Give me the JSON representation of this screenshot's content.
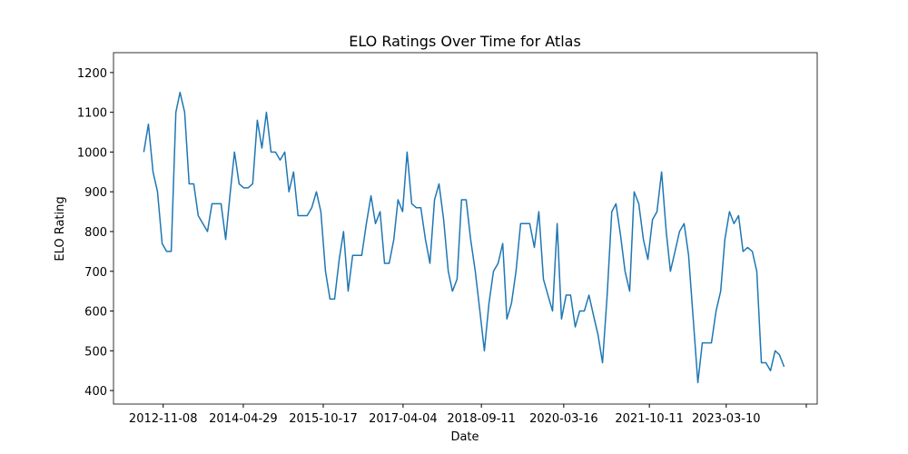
{
  "chart_data": {
    "type": "line",
    "title": "ELO Ratings Over Time for Atlas",
    "x_label": "Date",
    "y_label": "ELO Rating",
    "color": "#1f77b4",
    "x": [
      "2012-07-01",
      "2012-08-01",
      "2012-09-01",
      "2012-10-01",
      "2012-11-01",
      "2012-12-01",
      "2013-01-01",
      "2013-02-01",
      "2013-03-01",
      "2013-04-01",
      "2013-05-01",
      "2013-06-01",
      "2013-07-01",
      "2013-08-01",
      "2013-09-01",
      "2013-10-01",
      "2013-11-01",
      "2013-12-01",
      "2014-01-01",
      "2014-02-01",
      "2014-03-01",
      "2014-04-01",
      "2014-05-01",
      "2014-06-01",
      "2014-07-01",
      "2014-08-01",
      "2014-09-01",
      "2014-10-01",
      "2014-11-01",
      "2014-12-01",
      "2015-01-01",
      "2015-02-01",
      "2015-03-01",
      "2015-04-01",
      "2015-05-01",
      "2015-06-01",
      "2015-07-01",
      "2015-08-01",
      "2015-09-01",
      "2015-10-01",
      "2015-11-01",
      "2015-12-01",
      "2016-01-01",
      "2016-02-01",
      "2016-03-01",
      "2016-04-01",
      "2016-05-01",
      "2016-06-01",
      "2016-07-01",
      "2016-08-01",
      "2016-09-01",
      "2016-10-01",
      "2016-11-01",
      "2016-12-01",
      "2017-01-01",
      "2017-02-01",
      "2017-03-01",
      "2017-04-01",
      "2017-05-01",
      "2017-06-01",
      "2017-07-01",
      "2017-08-01",
      "2017-09-01",
      "2017-10-01",
      "2017-11-01",
      "2017-12-01",
      "2018-01-01",
      "2018-02-01",
      "2018-03-01",
      "2018-04-01",
      "2018-05-01",
      "2018-06-01",
      "2018-07-01",
      "2018-08-01",
      "2018-09-01",
      "2018-10-01",
      "2018-11-01",
      "2018-12-01",
      "2019-01-01",
      "2019-02-01",
      "2019-03-01",
      "2019-04-01",
      "2019-05-01",
      "2019-06-01",
      "2019-07-01",
      "2019-08-01",
      "2019-09-01",
      "2019-10-01",
      "2019-11-01",
      "2019-12-01",
      "2020-01-01",
      "2020-02-01",
      "2020-03-01",
      "2020-04-01",
      "2020-05-01",
      "2020-06-01",
      "2020-07-01",
      "2020-08-01",
      "2020-09-01",
      "2020-10-01",
      "2020-11-01",
      "2020-12-01",
      "2021-01-01",
      "2021-02-01",
      "2021-03-01",
      "2021-04-01",
      "2021-05-01",
      "2021-06-01",
      "2021-07-01",
      "2021-08-01",
      "2021-09-01",
      "2021-10-01",
      "2021-11-01",
      "2021-12-01",
      "2022-01-01",
      "2022-02-01",
      "2022-03-01",
      "2022-04-01",
      "2022-05-01",
      "2022-06-01",
      "2022-07-01",
      "2022-08-01",
      "2022-09-01",
      "2022-10-01",
      "2022-11-01",
      "2022-12-01",
      "2023-01-01",
      "2023-02-01",
      "2023-03-01",
      "2023-04-01",
      "2023-05-01",
      "2023-06-01",
      "2023-07-01",
      "2023-08-01",
      "2023-09-01",
      "2023-10-01",
      "2023-11-01",
      "2023-12-01",
      "2024-01-01",
      "2024-02-01",
      "2024-03-01",
      "2024-04-01"
    ],
    "values": [
      1000,
      1070,
      950,
      900,
      770,
      750,
      750,
      1100,
      1150,
      1100,
      920,
      920,
      840,
      820,
      800,
      870,
      870,
      870,
      780,
      900,
      1000,
      920,
      910,
      910,
      920,
      1080,
      1010,
      1100,
      1000,
      1000,
      980,
      1000,
      900,
      950,
      840,
      840,
      840,
      860,
      900,
      850,
      700,
      630,
      630,
      730,
      800,
      650,
      740,
      740,
      740,
      820,
      890,
      820,
      850,
      720,
      720,
      780,
      880,
      850,
      1000,
      870,
      860,
      860,
      780,
      720,
      880,
      920,
      830,
      700,
      650,
      680,
      880,
      880,
      780,
      700,
      600,
      500,
      620,
      700,
      720,
      770,
      580,
      620,
      700,
      820,
      820,
      820,
      760,
      850,
      680,
      640,
      600,
      820,
      580,
      640,
      640,
      560,
      600,
      600,
      640,
      590,
      540,
      470,
      640,
      850,
      870,
      790,
      700,
      650,
      900,
      870,
      780,
      730,
      830,
      850,
      950,
      800,
      700,
      750,
      800,
      820,
      740,
      580,
      420,
      520,
      520,
      520,
      600,
      650,
      780,
      850,
      820,
      840,
      750,
      760,
      750,
      700,
      470,
      470,
      450,
      500,
      490,
      460
    ],
    "xlim": [
      "2011-12-11",
      "2024-11-09"
    ],
    "xticks": [
      "2012-11-08",
      "2014-04-29",
      "2015-10-17",
      "2017-04-04",
      "2018-09-11",
      "2020-03-16",
      "2021-10-11",
      "2023-03-10",
      {
        "value": "2024-08-28",
        "label": null
      }
    ],
    "ylim": [
      366,
      1250
    ],
    "yticks": [
      400,
      500,
      600,
      700,
      800,
      900,
      1000,
      1100,
      1200
    ]
  }
}
